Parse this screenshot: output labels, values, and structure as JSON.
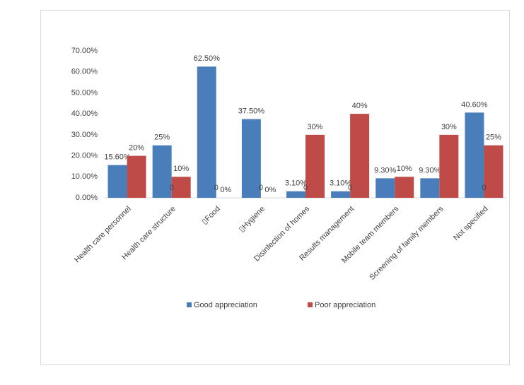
{
  "chart_data": {
    "type": "bar",
    "categories": [
      "Health care personnel",
      "Health care structure",
      "▯Food",
      "▯Hygiene",
      "Disinfection of homes",
      "Results management",
      "Mobile team members",
      "Screening of family members",
      "Not specified"
    ],
    "series": [
      {
        "name": "Good appreciation",
        "color": "#4a7ebb",
        "values": [
          15.6,
          25,
          62.5,
          37.5,
          3.1,
          3.1,
          9.3,
          9.3,
          40.6
        ],
        "value_labels": [
          "15.60%",
          "25%",
          "62.50%",
          "37.50%",
          "3.10%",
          "3.10%",
          "9.30%",
          "9.30%",
          "40.60%"
        ]
      },
      {
        "name": "Poor appreciation",
        "color": "#be4b48",
        "values": [
          20,
          10,
          0,
          0,
          30,
          40,
          10,
          30,
          25
        ],
        "value_labels": [
          "20%",
          "10%",
          "0%",
          "0%",
          "30%",
          "40%",
          "10%",
          "30%",
          "25%"
        ]
      }
    ],
    "zero_labels": [
      null,
      "0",
      "0",
      "0",
      "0",
      "0",
      null,
      null,
      "0"
    ],
    "ylim": [
      0,
      70
    ],
    "yticks": [
      {
        "value": 0,
        "label": "0.00%"
      },
      {
        "value": 10,
        "label": "10.00%"
      },
      {
        "value": 20,
        "label": "20.00%"
      },
      {
        "value": 30,
        "label": "30.00%"
      },
      {
        "value": 40,
        "label": "40.00%"
      },
      {
        "value": 50,
        "label": "50.00%"
      },
      {
        "value": 60,
        "label": "60.00%"
      },
      {
        "value": 70,
        "label": "70.00%"
      }
    ],
    "grid": false,
    "legend": "bottom"
  }
}
